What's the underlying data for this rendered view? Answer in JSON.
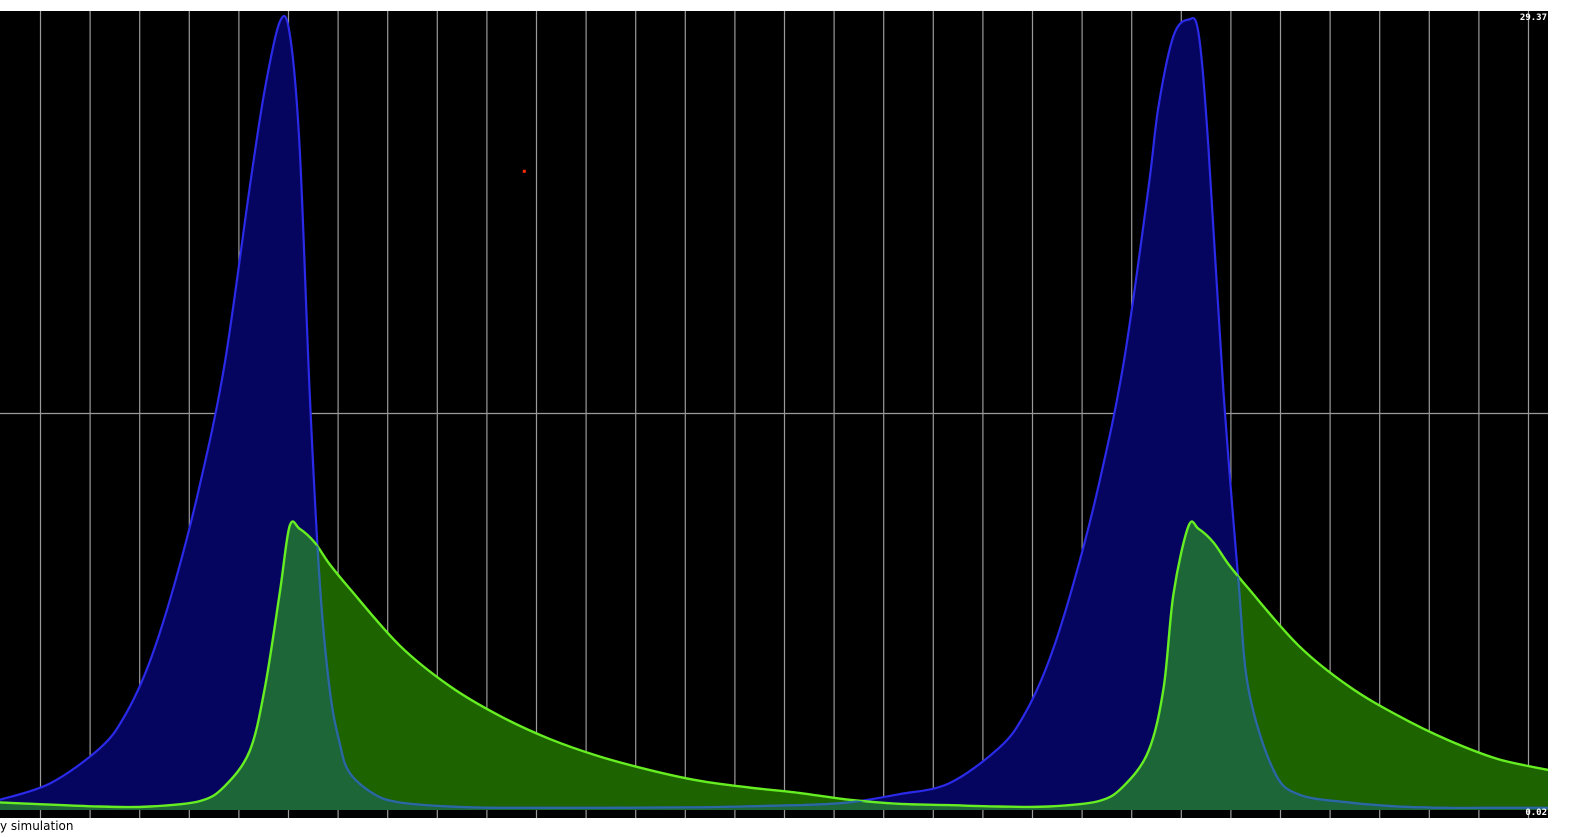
{
  "chart_data": {
    "type": "area",
    "title": "",
    "xlabel": "",
    "ylabel": "",
    "y_max_label": "29.37",
    "y_min_label": "0.02",
    "ylim": [
      0.02,
      29.37
    ],
    "xlim": [
      0,
      31
    ],
    "grid": true,
    "vertical_gridlines": 31,
    "horizontal_gridlines": 1,
    "colors": {
      "background": "#000000",
      "grid": "#9a9a9a",
      "series_1_line": "#2a2ae8",
      "series_1_fill": "#05055f",
      "series_2_line": "#66ee22",
      "series_2_fill": "#1d6400",
      "overlap_fill": "#1d6638",
      "marker": "#ff2a00"
    },
    "series": [
      {
        "x": [
          0,
          1,
          2,
          2.5,
          3,
          3.5,
          4,
          4.5,
          5,
          5.3,
          5.6,
          5.8,
          6.0,
          6.2,
          6.4,
          6.6,
          6.8,
          7.0,
          7.5,
          8,
          9,
          10,
          12,
          14,
          16,
          17,
          18,
          19,
          20,
          20.5,
          21,
          21.5,
          22,
          22.5,
          23,
          23.2,
          23.5,
          23.8,
          24.0,
          24.2,
          24.5,
          24.8,
          25.0,
          25.5,
          26,
          27,
          28,
          29,
          30,
          31
        ],
        "y": [
          0.4,
          1.0,
          2.3,
          3.5,
          5.5,
          8.4,
          12.0,
          16.5,
          23.0,
          26.6,
          29.1,
          28.7,
          24.5,
          15.5,
          8.5,
          4.5,
          2.5,
          1.4,
          0.6,
          0.3,
          0.15,
          0.1,
          0.1,
          0.12,
          0.2,
          0.3,
          0.6,
          1.0,
          2.3,
          3.5,
          5.5,
          8.4,
          12.0,
          16.5,
          23.0,
          26.0,
          28.6,
          29.2,
          28.7,
          24.5,
          15.5,
          8.5,
          4.5,
          1.5,
          0.6,
          0.3,
          0.15,
          0.1,
          0.1,
          0.1
        ]
      },
      {
        "x": [
          0,
          2,
          3,
          4,
          4.5,
          5,
          5.3,
          5.6,
          5.8,
          6.0,
          6.3,
          6.6,
          7,
          8,
          9,
          10,
          11,
          12,
          13,
          14,
          15,
          16,
          17,
          18,
          19,
          20,
          21,
          22,
          22.5,
          23,
          23.3,
          23.5,
          23.8,
          24.0,
          24.3,
          24.6,
          25,
          26,
          27,
          28,
          29,
          30,
          31
        ],
        "y": [
          0.3,
          0.15,
          0.15,
          0.35,
          0.9,
          2.2,
          4.5,
          8.0,
          10.5,
          10.4,
          9.9,
          9.1,
          8.2,
          6.1,
          4.6,
          3.5,
          2.65,
          2.0,
          1.5,
          1.1,
          0.85,
          0.65,
          0.4,
          0.25,
          0.2,
          0.15,
          0.15,
          0.35,
          0.9,
          2.2,
          4.5,
          8.0,
          10.5,
          10.4,
          9.9,
          9.1,
          8.2,
          6.1,
          4.6,
          3.5,
          2.6,
          1.9,
          1.5
        ]
      }
    ],
    "markers": [
      {
        "x": 10.5,
        "y": 23.6
      }
    ]
  },
  "status": {
    "caption": "y simulation"
  }
}
